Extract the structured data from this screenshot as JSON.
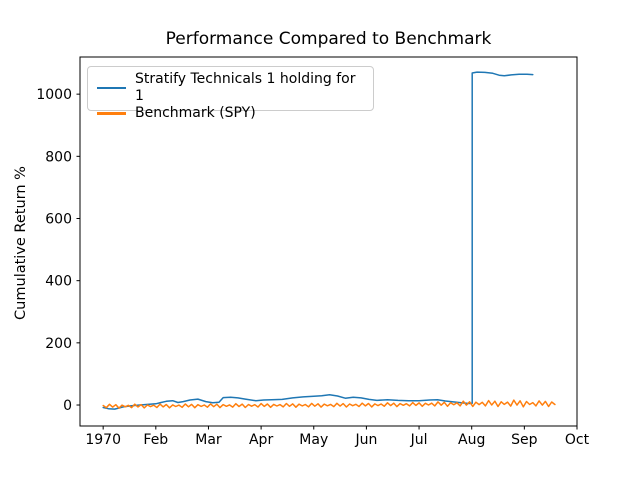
{
  "chart_data": {
    "type": "line",
    "title": "Performance Compared to Benchmark",
    "xlabel": "",
    "ylabel": "Cumulative Return %",
    "x_tick_labels": [
      "1970",
      "Feb",
      "Mar",
      "Apr",
      "May",
      "Jun",
      "Jul",
      "Aug",
      "Sep",
      "Oct"
    ],
    "x_tick_values": [
      0,
      1,
      2,
      3,
      4,
      5,
      6,
      7,
      8,
      9
    ],
    "y_tick_labels": [
      "0",
      "200",
      "400",
      "600",
      "800",
      "1000"
    ],
    "y_tick_values": [
      0,
      200,
      400,
      600,
      800,
      1000
    ],
    "xlim": [
      -0.44,
      9.0
    ],
    "ylim": [
      -67.5,
      1119.5
    ],
    "grid": false,
    "legend_position": "upper left",
    "x_unit": "month index from Jan 1970 tick (0=1970, 1=Feb, ... 9=Oct)",
    "y_unit": "Cumulative Return %",
    "series": [
      {
        "name": "Stratify Technicals 1 holding for 1",
        "color": "#1f77b4",
        "description": "Near 0-30% until Aug, vertical jump at Aug to ~1060-1070% plateau, ends mid-Sep",
        "points": [
          [
            0.0,
            -8
          ],
          [
            0.1,
            -12
          ],
          [
            0.22,
            -13
          ],
          [
            0.38,
            -6
          ],
          [
            0.52,
            -3
          ],
          [
            0.7,
            0
          ],
          [
            0.85,
            2
          ],
          [
            1.0,
            4
          ],
          [
            1.1,
            8
          ],
          [
            1.2,
            12
          ],
          [
            1.32,
            14
          ],
          [
            1.42,
            8
          ],
          [
            1.52,
            11
          ],
          [
            1.65,
            16
          ],
          [
            1.8,
            19
          ],
          [
            1.95,
            11
          ],
          [
            2.08,
            7
          ],
          [
            2.2,
            9
          ],
          [
            2.28,
            24
          ],
          [
            2.42,
            25
          ],
          [
            2.56,
            23
          ],
          [
            2.7,
            19
          ],
          [
            2.9,
            14
          ],
          [
            3.05,
            16
          ],
          [
            3.2,
            17
          ],
          [
            3.4,
            18
          ],
          [
            3.6,
            23
          ],
          [
            3.8,
            26
          ],
          [
            4.0,
            28
          ],
          [
            4.15,
            30
          ],
          [
            4.3,
            33
          ],
          [
            4.45,
            29
          ],
          [
            4.6,
            22
          ],
          [
            4.75,
            25
          ],
          [
            4.9,
            23
          ],
          [
            5.05,
            18
          ],
          [
            5.2,
            15
          ],
          [
            5.4,
            17
          ],
          [
            5.6,
            15
          ],
          [
            5.8,
            14
          ],
          [
            6.0,
            14
          ],
          [
            6.2,
            16
          ],
          [
            6.35,
            17
          ],
          [
            6.5,
            13
          ],
          [
            6.65,
            10
          ],
          [
            6.8,
            7
          ],
          [
            6.95,
            5
          ],
          [
            7.01,
            6
          ],
          [
            7.01,
            1068
          ],
          [
            7.1,
            1071
          ],
          [
            7.25,
            1070
          ],
          [
            7.4,
            1067
          ],
          [
            7.52,
            1061
          ],
          [
            7.62,
            1059
          ],
          [
            7.75,
            1062
          ],
          [
            7.9,
            1064
          ],
          [
            8.05,
            1064
          ],
          [
            8.16,
            1063
          ]
        ]
      },
      {
        "name": "Benchmark (SPY)",
        "color": "#ff7f0e",
        "description": "Dense noisy band oscillating around 0 (approx -10 to +6), drifting up to peaks ~15 near Aug-Sep, ends late Sep",
        "points": [
          [
            0.0,
            -1.4
          ],
          [
            0.06,
            -8.6
          ],
          [
            0.12,
            2.2
          ],
          [
            0.18,
            -6.8
          ],
          [
            0.24,
            1.0
          ],
          [
            0.3,
            -9.8
          ],
          [
            0.36,
            -0.2
          ],
          [
            0.42,
            -5.6
          ],
          [
            0.48,
            -1.0
          ],
          [
            0.54,
            -8.2
          ],
          [
            0.6,
            2.6
          ],
          [
            0.66,
            -6.4
          ],
          [
            0.72,
            1.4
          ],
          [
            0.78,
            -9.4
          ],
          [
            0.84,
            0.2
          ],
          [
            0.9,
            -5.2
          ],
          [
            0.96,
            -0.7
          ],
          [
            1.02,
            -7.9
          ],
          [
            1.08,
            2.9
          ],
          [
            1.14,
            -6.1
          ],
          [
            1.2,
            1.7
          ],
          [
            1.26,
            -9.1
          ],
          [
            1.32,
            0.5
          ],
          [
            1.38,
            -4.9
          ],
          [
            1.44,
            -0.3
          ],
          [
            1.5,
            -7.5
          ],
          [
            1.56,
            3.3
          ],
          [
            1.62,
            -5.7
          ],
          [
            1.68,
            2.1
          ],
          [
            1.74,
            -8.7
          ],
          [
            1.8,
            0.9
          ],
          [
            1.86,
            -4.5
          ],
          [
            1.92,
            0.1
          ],
          [
            1.98,
            -7.1
          ],
          [
            2.04,
            3.7
          ],
          [
            2.1,
            -5.3
          ],
          [
            2.16,
            2.5
          ],
          [
            2.22,
            -8.3
          ],
          [
            2.28,
            1.3
          ],
          [
            2.34,
            -4.1
          ],
          [
            2.4,
            0.5
          ],
          [
            2.46,
            -6.7
          ],
          [
            2.52,
            4.1
          ],
          [
            2.58,
            -4.9
          ],
          [
            2.64,
            2.9
          ],
          [
            2.7,
            -7.9
          ],
          [
            2.76,
            1.7
          ],
          [
            2.82,
            -3.7
          ],
          [
            2.88,
            0.9
          ],
          [
            2.94,
            -6.3
          ],
          [
            3.0,
            4.5
          ],
          [
            3.06,
            -4.5
          ],
          [
            3.12,
            3.3
          ],
          [
            3.18,
            -7.5
          ],
          [
            3.24,
            2.1
          ],
          [
            3.3,
            -3.3
          ],
          [
            3.36,
            1.3
          ],
          [
            3.42,
            -5.9
          ],
          [
            3.48,
            4.9
          ],
          [
            3.54,
            -4.1
          ],
          [
            3.6,
            3.7
          ],
          [
            3.66,
            -7.1
          ],
          [
            3.72,
            2.5
          ],
          [
            3.78,
            -2.9
          ],
          [
            3.84,
            1.6
          ],
          [
            3.9,
            -5.6
          ],
          [
            3.96,
            5.2
          ],
          [
            4.02,
            -3.8
          ],
          [
            4.08,
            4.0
          ],
          [
            4.14,
            -6.8
          ],
          [
            4.2,
            2.8
          ],
          [
            4.26,
            -2.6
          ],
          [
            4.32,
            2.0
          ],
          [
            4.38,
            -5.2
          ],
          [
            4.44,
            5.6
          ],
          [
            4.5,
            -3.4
          ],
          [
            4.56,
            4.4
          ],
          [
            4.62,
            -6.4
          ],
          [
            4.68,
            3.2
          ],
          [
            4.74,
            -2.2
          ],
          [
            4.8,
            2.4
          ],
          [
            4.86,
            -4.8
          ],
          [
            4.92,
            6.0
          ],
          [
            4.98,
            -3.0
          ],
          [
            5.04,
            4.8
          ],
          [
            5.1,
            -6.0
          ],
          [
            5.16,
            3.6
          ],
          [
            5.22,
            -1.8
          ],
          [
            5.28,
            3.4
          ],
          [
            5.34,
            -3.8
          ],
          [
            5.4,
            7.0
          ],
          [
            5.46,
            -2.0
          ],
          [
            5.52,
            5.8
          ],
          [
            5.58,
            -5.0
          ],
          [
            5.64,
            4.6
          ],
          [
            5.7,
            -0.8
          ],
          [
            5.76,
            4.3
          ],
          [
            5.82,
            -2.9
          ],
          [
            5.88,
            7.9
          ],
          [
            5.94,
            -1.1
          ],
          [
            6.0,
            6.7
          ],
          [
            6.06,
            -4.1
          ],
          [
            6.12,
            5.5
          ],
          [
            6.18,
            0.1
          ],
          [
            6.24,
            5.7
          ],
          [
            6.3,
            -2.8
          ],
          [
            6.36,
            10.0
          ],
          [
            6.42,
            -0.7
          ],
          [
            6.48,
            8.6
          ],
          [
            6.54,
            -4.2
          ],
          [
            6.6,
            7.2
          ],
          [
            6.66,
            0.8
          ],
          [
            6.72,
            7.2
          ],
          [
            6.78,
            -2.7
          ],
          [
            6.84,
            12.2
          ],
          [
            6.9,
            -0.3
          ],
          [
            6.96,
            10.5
          ],
          [
            7.02,
            -4.4
          ],
          [
            7.08,
            8.9
          ],
          [
            7.14,
            1.4
          ],
          [
            7.2,
            8.6
          ],
          [
            7.26,
            -2.8
          ],
          [
            7.32,
            14.3
          ],
          [
            7.38,
            0.1
          ],
          [
            7.44,
            12.4
          ],
          [
            7.5,
            -4.7
          ],
          [
            7.56,
            10.5
          ],
          [
            7.62,
            2.0
          ],
          [
            7.68,
            9.3
          ],
          [
            7.74,
            -3.6
          ],
          [
            7.8,
            15.7
          ],
          [
            7.86,
            -0.4
          ],
          [
            7.92,
            13.6
          ],
          [
            7.98,
            -5.7
          ],
          [
            8.04,
            11.4
          ],
          [
            8.1,
            1.8
          ],
          [
            8.16,
            7.9
          ],
          [
            8.22,
            -2.9
          ],
          [
            8.28,
            13.3
          ],
          [
            8.34,
            -0.2
          ],
          [
            8.4,
            11.5
          ],
          [
            8.46,
            -4.7
          ],
          [
            8.52,
            9.7
          ],
          [
            8.58,
            1.6
          ]
        ]
      }
    ]
  },
  "style": {
    "axes_color": "#000000",
    "background": "#ffffff",
    "legend_border": "#cccccc"
  }
}
